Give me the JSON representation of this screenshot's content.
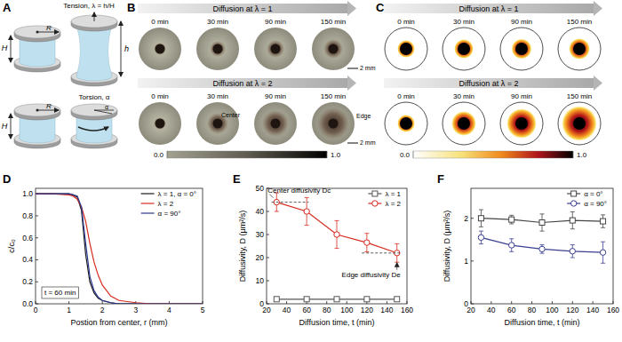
{
  "panel_labels": [
    "A",
    "B",
    "C",
    "D",
    "E",
    "F"
  ],
  "schematic": {
    "radius": "R",
    "height": "H",
    "stretched_height": "h",
    "tension": "Tension, λ = h/H",
    "torsion": "Torsion, α",
    "twist": "α"
  },
  "experiment": {
    "rows": [
      "Diffusion at λ = 1",
      "Diffusion at λ = 2"
    ],
    "times": [
      "0 min",
      "30 min",
      "90 min",
      "150 min"
    ],
    "center": "Center",
    "edge": "Edge",
    "scale_bar": "2 mm",
    "colorbar": {
      "range": [
        0,
        1
      ],
      "ticks": [
        {
          "value": 0,
          "label": "0.0"
        },
        {
          "value": 1,
          "label": "1.0"
        }
      ]
    }
  },
  "simulation": {
    "rows": [
      "Diffusion at λ = 1",
      "Diffusion at λ = 2"
    ],
    "times": [
      "0 min",
      "30 min",
      "90 min",
      "150 min"
    ],
    "colorbar": {
      "range": [
        0,
        1
      ],
      "ticks": [
        {
          "value": 0,
          "label": "0.0"
        },
        {
          "value": 1,
          "label": "1.0"
        }
      ]
    }
  },
  "chart_data": [
    {
      "type": "line",
      "x": [
        0,
        0.5,
        1,
        1.125,
        1.25,
        1.375,
        1.5,
        1.625,
        1.75,
        1.875,
        2,
        2.25,
        2.5,
        3,
        3.5,
        4,
        4.5,
        5
      ],
      "xlim": [
        0,
        5
      ],
      "xticks": [
        0,
        1,
        2,
        3,
        4,
        5
      ],
      "ylim": [
        0,
        1.05
      ],
      "yticks": [
        {
          "value": 0,
          "label": "0.0"
        },
        0.2,
        0.4,
        0.6,
        0.8,
        {
          "value": 1,
          "label": "1.0"
        }
      ],
      "x_label": "Postion from center, r (mm)",
      "y_label": "c/c₀",
      "grid": false,
      "legend": "upper right",
      "series": [
        {
          "name": "λ = 1, α = 0°",
          "color": "#1a1a1a",
          "line_style": "solid",
          "values": [
            1,
            1,
            1,
            0.99,
            0.97,
            0.85,
            0.45,
            0.2,
            0.1,
            0.05,
            0.03,
            0.01,
            0,
            0,
            0,
            0,
            0,
            0
          ]
        },
        {
          "name": "λ = 2",
          "color": "#d62a1e",
          "line_style": "solid",
          "values": [
            1,
            1,
            0.99,
            0.98,
            0.95,
            0.88,
            0.75,
            0.55,
            0.38,
            0.26,
            0.17,
            0.07,
            0.03,
            0.01,
            0,
            0,
            0,
            0
          ]
        },
        {
          "name": "α = 90°",
          "color": "#2b3990",
          "line_style": "solid",
          "values": [
            1,
            1,
            1,
            0.99,
            0.98,
            0.88,
            0.55,
            0.25,
            0.12,
            0.06,
            0.03,
            0.01,
            0,
            0,
            0,
            0,
            0,
            0
          ]
        }
      ],
      "annotations": [
        {
          "text": "t = 60 min",
          "anchor": "lower left"
        }
      ]
    },
    {
      "type": "line",
      "x": [
        30,
        60,
        90,
        120,
        150
      ],
      "xlim": [
        20,
        160
      ],
      "xticks": [
        20,
        40,
        60,
        80,
        100,
        120,
        140,
        160
      ],
      "ylim": [
        0,
        50
      ],
      "yticks": [
        0,
        10,
        20,
        30,
        40,
        50
      ],
      "x_label": "Diffusion time, t (min)",
      "y_label": "Diffusivity, D (μm²/s)",
      "grid": false,
      "legend": "upper right",
      "series": [
        {
          "name": "λ = 1",
          "color": "#555555",
          "marker": "square",
          "line_style": "solid",
          "values": [
            2,
            2,
            2,
            2,
            2
          ],
          "errors": [
            0.3,
            0.3,
            0.3,
            0.3,
            0.3
          ]
        },
        {
          "name": "λ = 2",
          "color": "#d62a1e",
          "marker": "circle",
          "line_style": "solid",
          "values": [
            44,
            40,
            30,
            26.5,
            22
          ],
          "errors": [
            4,
            6,
            6,
            4,
            4
          ]
        }
      ],
      "annotations": [
        {
          "text": "Center diffusivity Dc",
          "x": 30,
          "y": 44,
          "span": [
            25,
            62
          ],
          "anchor": "above"
        },
        {
          "text": "Edge diffusivity De",
          "x": 150,
          "y": 22,
          "span": [
            115,
            155
          ],
          "anchor": "below"
        }
      ]
    },
    {
      "type": "line",
      "x": [
        30,
        60,
        90,
        120,
        150
      ],
      "xlim": [
        20,
        160
      ],
      "xticks": [
        20,
        40,
        60,
        80,
        100,
        120,
        140,
        160
      ],
      "ylim": [
        0,
        2.7
      ],
      "yticks": [
        0,
        1,
        2
      ],
      "x_label": "Diffusion time, t (min)",
      "y_label": "Diffusivity, D (μm²/s)",
      "grid": false,
      "legend": "upper right",
      "series": [
        {
          "name": "α = 0°",
          "color": "#444444",
          "marker": "square",
          "line_style": "solid",
          "values": [
            2,
            1.97,
            1.9,
            1.95,
            1.93
          ],
          "errors": [
            0.2,
            0.1,
            0.2,
            0.2,
            0.15
          ]
        },
        {
          "name": "α = 90°",
          "color": "#3a3f8f",
          "marker": "circle",
          "line_style": "solid",
          "values": [
            1.55,
            1.37,
            1.28,
            1.23,
            1.2
          ],
          "errors": [
            0.15,
            0.15,
            0.1,
            0.15,
            0.25
          ]
        }
      ]
    }
  ]
}
